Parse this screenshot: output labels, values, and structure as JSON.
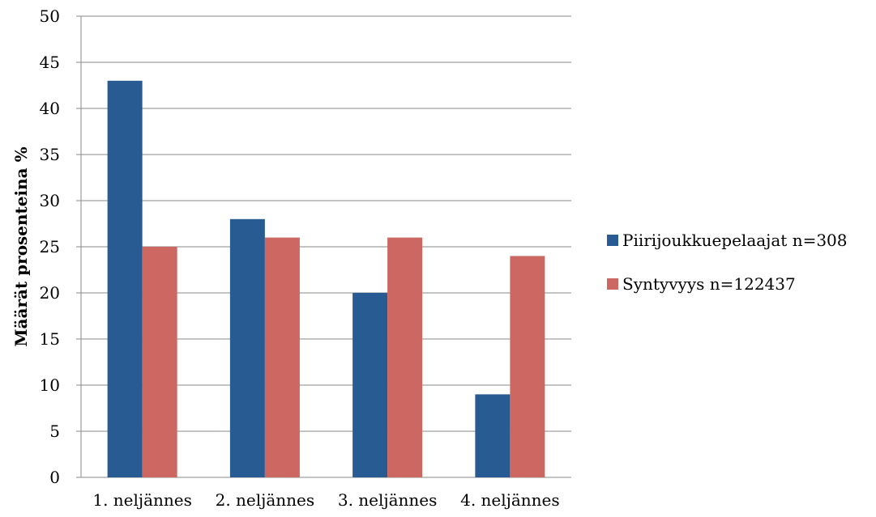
{
  "chart_data": {
    "type": "bar",
    "title": "",
    "xlabel": "",
    "ylabel": "Määrät prosenteina %",
    "categories": [
      "1. neljännes",
      "2. neljännes",
      "3. neljännes",
      "4. neljännes"
    ],
    "series": [
      {
        "name": "Piirijoukkuepelaajat n=308",
        "color": "#275b91",
        "values": [
          43,
          28,
          20,
          9
        ]
      },
      {
        "name": "Syntyvyys n=122437",
        "color": "#cd6762",
        "values": [
          25,
          26,
          26,
          24
        ]
      }
    ],
    "ylim": [
      0,
      50
    ],
    "yticks": [
      0,
      5,
      10,
      15,
      20,
      25,
      30,
      35,
      40,
      45,
      50
    ],
    "grid": true,
    "legend": "right"
  }
}
